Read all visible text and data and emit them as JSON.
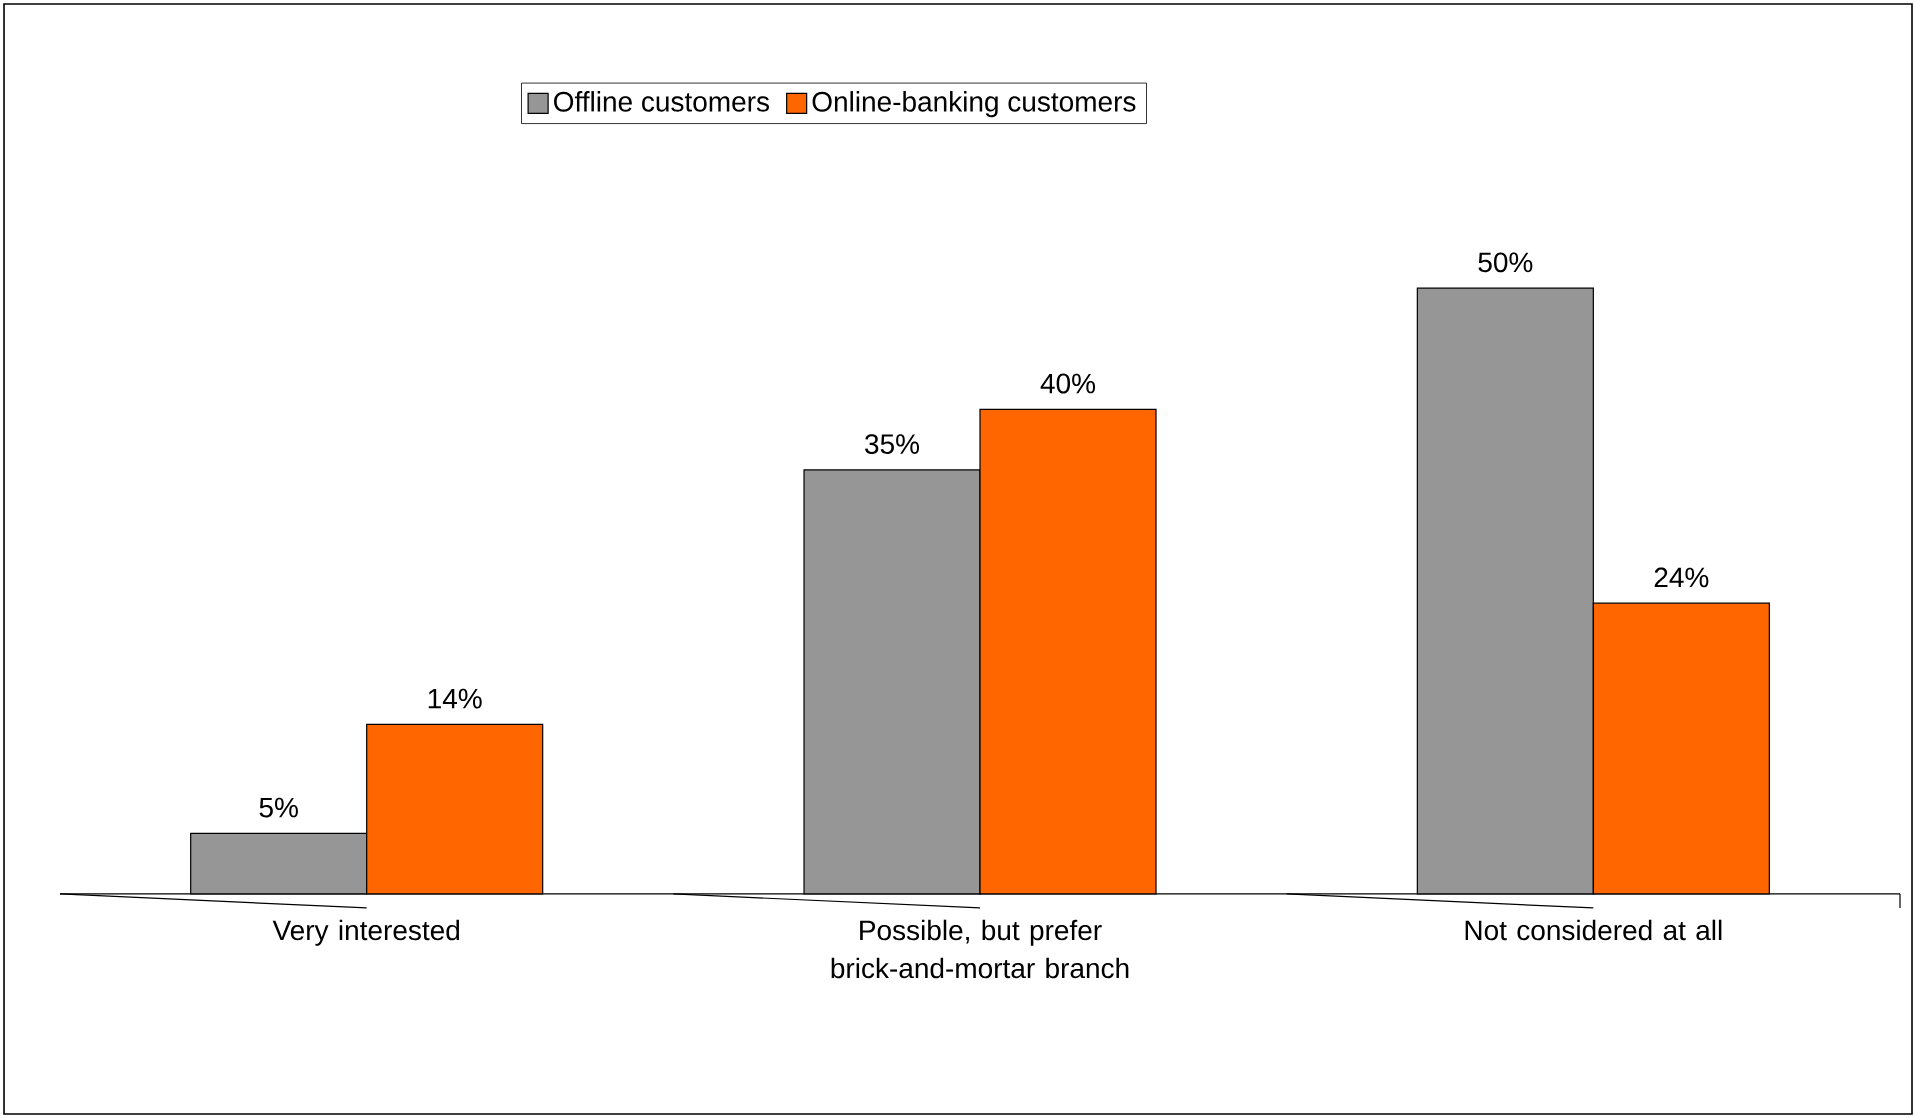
{
  "chart_data": {
    "type": "bar",
    "categories": [
      "Very interested",
      "Possible, but prefer brick-and-mortar branch",
      "Not considered at all"
    ],
    "series": [
      {
        "name": "Offline customers",
        "color": "#969696",
        "values": [
          5,
          35,
          50
        ],
        "value_labels": [
          "5%",
          "35%",
          "50%"
        ]
      },
      {
        "name": "Online-banking customers",
        "color": "#ff6600",
        "values": [
          14,
          40,
          24
        ],
        "value_labels": [
          "14%",
          "40%",
          "24%"
        ]
      }
    ],
    "legend": "top"
  }
}
